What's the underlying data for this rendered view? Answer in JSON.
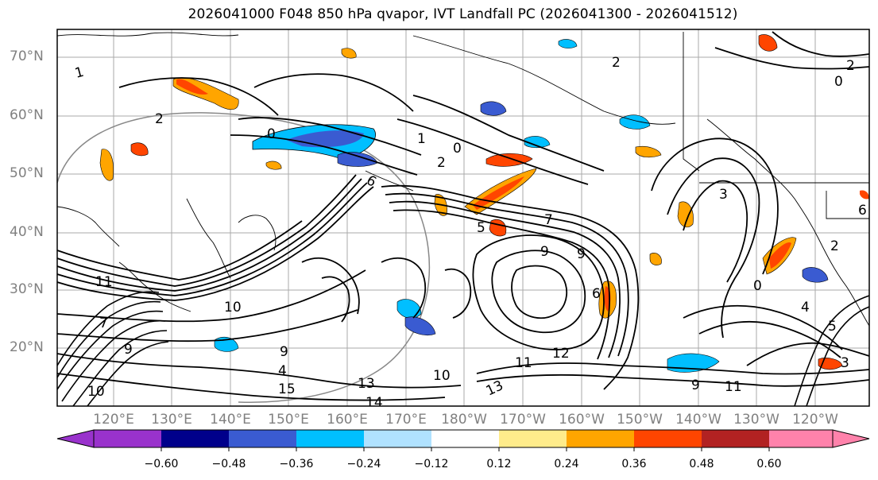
{
  "title": "2026041000 F048 850 hPa qvapor, IVT Landfall PC (2026041300 - 2026041512)",
  "latitude_labels": [
    "70°N",
    "60°N",
    "50°N",
    "40°N",
    "30°N",
    "20°N"
  ],
  "longitude_labels": [
    "120°E",
    "130°E",
    "140°E",
    "150°E",
    "160°E",
    "170°E",
    "180°W",
    "170°W",
    "160°W",
    "150°W",
    "140°W",
    "130°W",
    "120°W"
  ],
  "colorbar": {
    "colors": [
      "#9932cc",
      "#00008b",
      "#3a5bd1",
      "#00bfff",
      "#b0e2ff",
      "#ffffff",
      "#ffec8b",
      "#ffa500",
      "#ff4500",
      "#b22222",
      "#ff82ab"
    ],
    "tick_labels": [
      "−0.60",
      "−0.48",
      "−0.36",
      "−0.24",
      "−0.12",
      "0.12",
      "0.24",
      "0.36",
      "0.48",
      "0.60"
    ]
  },
  "contour_labels": [
    "1",
    "2",
    "0",
    "1",
    "0",
    "2",
    "5",
    "7",
    "6",
    "9",
    "9",
    "6",
    "10",
    "11",
    "9",
    "4",
    "15",
    "13",
    "14",
    "12",
    "11",
    "10",
    "13",
    "10",
    "7",
    "9",
    "9",
    "11",
    "3",
    "0",
    "2",
    "0",
    "2",
    "4",
    "5",
    "3",
    "2",
    "6"
  ]
}
